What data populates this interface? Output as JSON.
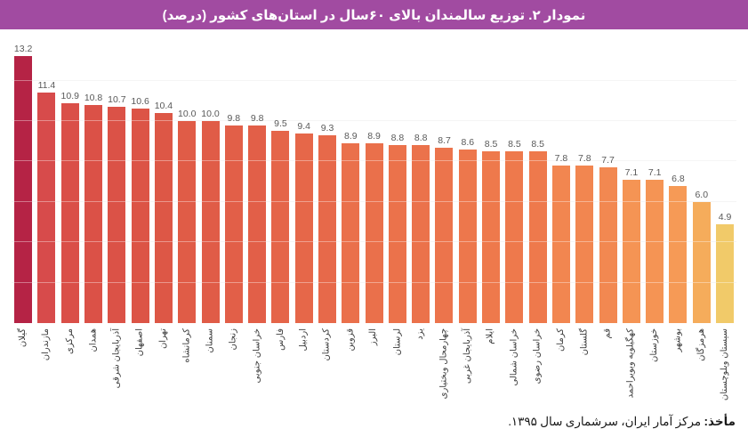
{
  "title": {
    "text": "نمودار ۲. توزیع سالمندان بالای ۶۰سال در استان‌های کشور (درصد)",
    "bg_color": "#a14ba1",
    "text_color": "#ffffff"
  },
  "footer": {
    "bold_label": "مأخذ:",
    "text": " مرکز آمار ایران، سرشماری سال ۱۳۹۵."
  },
  "chart_data": {
    "type": "bar",
    "title": "نمودار ۲. توزیع سالمندان بالای ۶۰سال در استان‌های کشور (درصد)",
    "xlabel": "",
    "ylabel": "",
    "ylim": [
      0,
      14
    ],
    "grid": "faint horizontal gridlines every 2 units",
    "legend": "none",
    "value_label_color": "#595959",
    "axis_label_color": "#3d3d3d",
    "gridline_step": 2,
    "gridline_max": 12,
    "categories": [
      "گیلان",
      "مازندران",
      "مرکزی",
      "همدان",
      "آذربایجان شرقی",
      "اصفهان",
      "تهران",
      "کرمانشاه",
      "سمنان",
      "زنجان",
      "خراسان جنوبی",
      "فارس",
      "اردبیل",
      "کردستان",
      "قزوین",
      "البرز",
      "لرستان",
      "یزد",
      "چهارمحال وبختیاری",
      "آذربایجان غربی",
      "ایلام",
      "خراسان شمالی",
      "خراسان رضوی",
      "کرمان",
      "گلستان",
      "قم",
      "کهگیلویه وبویراحمد",
      "خوزستان",
      "بوشهر",
      "هرمزگان",
      "سیستان وبلوچستان"
    ],
    "values": [
      13.2,
      11.4,
      10.9,
      10.8,
      10.7,
      10.6,
      10.4,
      10.0,
      10.0,
      9.8,
      9.8,
      9.5,
      9.4,
      9.3,
      8.9,
      8.9,
      8.8,
      8.8,
      8.7,
      8.6,
      8.5,
      8.5,
      8.5,
      7.8,
      7.8,
      7.7,
      7.1,
      7.1,
      6.8,
      6.0,
      4.9
    ],
    "bar_colors": [
      "#b52345",
      "#d74b4b",
      "#da4f48",
      "#db5147",
      "#db5247",
      "#dc5446",
      "#dd5746",
      "#e05c47",
      "#e05c47",
      "#e25f48",
      "#e25f48",
      "#e56549",
      "#e66749",
      "#e7694a",
      "#ea704b",
      "#ea704b",
      "#eb724b",
      "#eb724b",
      "#ec744c",
      "#ed774c",
      "#ee794c",
      "#ee794c",
      "#ee794c",
      "#f28650",
      "#f28650",
      "#f28851",
      "#f59454",
      "#f59454",
      "#f69a56",
      "#f5ac5b",
      "#f1ca69"
    ]
  }
}
